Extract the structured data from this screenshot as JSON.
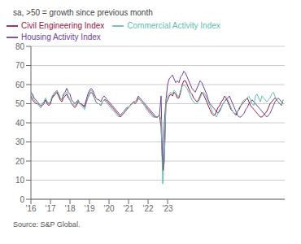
{
  "chart_data": {
    "type": "line",
    "subtitle": "sa, >50 = growth since previous month",
    "annotations": [
      "Source: S&P Global."
    ],
    "x": [
      2016,
      2016.0833,
      2016.1667,
      2016.25,
      2016.3333,
      2016.4167,
      2016.5,
      2016.5833,
      2016.6667,
      2016.75,
      2016.8333,
      2016.9167,
      2017,
      2017.0833,
      2017.1667,
      2017.25,
      2017.3333,
      2017.4167,
      2017.5,
      2017.5833,
      2017.6667,
      2017.75,
      2017.8333,
      2017.9167,
      2018,
      2018.0833,
      2018.1667,
      2018.25,
      2018.3333,
      2018.4167,
      2018.5,
      2018.5833,
      2018.6667,
      2018.75,
      2018.8333,
      2018.9167,
      2019,
      2019.0833,
      2019.1667,
      2019.25,
      2019.3333,
      2019.4167,
      2019.5,
      2019.5833,
      2019.6667,
      2019.75,
      2019.8333,
      2019.9167,
      2020,
      2020.0833,
      2020.1667,
      2020.25,
      2020.3333,
      2020.4167,
      2020.5,
      2020.5833,
      2020.6667,
      2020.75,
      2020.8333,
      2020.9167,
      2021,
      2021.0833,
      2021.1667,
      2021.25,
      2021.3333,
      2021.4167,
      2021.5,
      2021.5833,
      2021.6667,
      2021.75,
      2021.8333,
      2021.9167,
      2022,
      2022.0833,
      2022.1667,
      2022.25,
      2022.3333,
      2022.4167,
      2022.5,
      2022.5833,
      2022.6667,
      2022.75,
      2022.8333,
      2022.9167,
      2023,
      2023.0833,
      2023.1667,
      2023.25,
      2023.3333,
      2023.4167,
      2023.5,
      2023.5833,
      2023.6667,
      2023.75,
      2023.8333,
      2023.9167,
      2024,
      2024.0833,
      2024.1667,
      2024.25,
      2024.3333,
      2024.4167,
      2024.5,
      2024.5833,
      2024.6667,
      2024.75,
      2024.8333,
      2024.9167,
      2025,
      2025.0833,
      2025.1667,
      2025.25,
      2025.3333,
      2025.4167,
      2025.5,
      2025.5833,
      2025.6667,
      2025.75,
      2025.8333,
      2025.9167,
      2026,
      2026.0833,
      2026.1667,
      2026.25,
      2026.3333,
      2026.4167,
      2026.5,
      2026.5833,
      2026.6667,
      2026.75,
      2026.8333,
      2026.9167,
      2027,
      2027.0833,
      2027.1667,
      2027.25,
      2027.3333,
      2027.4167,
      2027.5,
      2027.5833,
      2027.6667,
      2027.75,
      2027.8333,
      2027.9167,
      2028,
      2028.0833,
      2028.1667,
      2028.25,
      2028.3333,
      2028.4167,
      2028.5,
      2028.5833,
      2028.6667,
      2028.75,
      2028.8333,
      2028.9167
    ],
    "series": [
      {
        "name": "Housing Activity Index",
        "color": "#6B3FA0",
        "values": [
          56,
          55,
          53,
          52,
          51,
          50,
          49,
          49,
          50,
          52,
          51,
          50,
          51,
          53,
          55,
          56,
          57,
          55,
          53,
          52,
          55,
          56,
          58,
          56,
          55,
          52,
          51,
          50,
          51,
          52,
          50,
          50,
          49,
          49,
          52,
          55,
          57,
          58,
          57,
          55,
          53,
          52,
          52,
          51,
          53,
          54,
          53,
          52,
          51,
          50,
          49,
          48,
          47,
          46,
          45,
          44,
          45,
          46,
          47,
          48,
          48,
          49,
          50,
          51,
          51,
          52,
          54,
          53,
          52,
          51,
          50,
          49,
          48,
          47,
          46,
          45,
          44,
          43,
          43,
          44,
          54,
          15,
          40,
          52,
          60,
          63,
          64,
          65,
          63,
          61,
          62,
          61,
          64,
          65,
          67,
          66,
          64,
          62,
          60,
          58,
          57,
          56,
          58,
          60,
          62,
          61,
          59,
          57,
          55,
          52,
          50,
          49,
          48,
          47,
          46,
          45,
          46,
          48,
          50,
          51,
          52,
          53,
          54,
          52,
          50,
          48,
          46,
          44,
          43,
          43,
          44,
          45,
          47,
          48,
          50,
          51,
          52,
          51,
          50,
          49,
          48,
          47,
          46,
          45,
          44,
          43,
          44,
          45,
          47,
          49,
          51,
          52,
          53,
          52,
          51,
          50
        ]
      },
      {
        "name": "Civil Engineering Index",
        "color": "#A0143C",
        "values": [
          54,
          52,
          51,
          50,
          50,
          49,
          48,
          50,
          51,
          52,
          50,
          49,
          50,
          53,
          54,
          55,
          56,
          54,
          52,
          51,
          53,
          54,
          55,
          53,
          52,
          50,
          49,
          48,
          49,
          51,
          50,
          50,
          49,
          48,
          51,
          53,
          55,
          56,
          55,
          53,
          51,
          50,
          50,
          49,
          51,
          52,
          52,
          51,
          50,
          49,
          48,
          47,
          46,
          45,
          44,
          43,
          44,
          45,
          46,
          47,
          48,
          49,
          50,
          51,
          50,
          51,
          53,
          52,
          51,
          50,
          49,
          48,
          47,
          46,
          45,
          44,
          43,
          43,
          43,
          44,
          38,
          15,
          20,
          50,
          52,
          54,
          55,
          54,
          56,
          55,
          53,
          53,
          56,
          60,
          62,
          62,
          60,
          58,
          56,
          55,
          53,
          52,
          51,
          52,
          54,
          56,
          55,
          53,
          51,
          49,
          47,
          45,
          44,
          44,
          46,
          48,
          49,
          51,
          52,
          54,
          53,
          51,
          49,
          47,
          46,
          45,
          44,
          46,
          47,
          49,
          50,
          51,
          52,
          53,
          51,
          49,
          48,
          47,
          46,
          45,
          44,
          43,
          43,
          44,
          45,
          46,
          48,
          50,
          51,
          52,
          53,
          52,
          51,
          50,
          49,
          52
        ]
      },
      {
        "name": "Commercial Activity Index",
        "color": "#5CBFAD",
        "values": [
          56,
          54,
          52,
          51,
          50,
          49,
          48,
          50,
          51,
          53,
          51,
          50,
          51,
          54,
          55,
          56,
          57,
          55,
          53,
          52,
          54,
          55,
          56,
          54,
          52,
          50,
          50,
          49,
          50,
          52,
          50,
          49,
          48,
          47,
          50,
          53,
          56,
          57,
          56,
          53,
          51,
          50,
          50,
          49,
          51,
          52,
          51,
          50,
          49,
          48,
          47,
          46,
          45,
          44,
          43,
          44,
          45,
          46,
          47,
          48,
          48,
          49,
          50,
          51,
          51,
          52,
          53,
          52,
          51,
          50,
          49,
          47,
          46,
          45,
          44,
          43,
          43,
          43,
          43,
          44,
          42,
          8,
          20,
          52,
          54,
          55,
          56,
          55,
          57,
          56,
          54,
          54,
          57,
          59,
          60,
          59,
          58,
          56,
          54,
          52,
          51,
          50,
          50,
          51,
          53,
          55,
          56,
          55,
          53,
          51,
          49,
          47,
          45,
          44,
          43,
          45,
          47,
          48,
          50,
          51,
          53,
          52,
          50,
          48,
          46,
          45,
          45,
          46,
          48,
          49,
          51,
          52,
          52,
          53,
          54,
          52,
          50,
          49,
          54,
          55,
          53,
          51,
          54,
          53,
          52,
          51,
          52,
          53,
          55,
          56,
          54,
          52,
          51,
          50,
          49,
          52
        ]
      }
    ],
    "xlim": [
      2016,
      2029
    ],
    "xticks": [
      {
        "value": 2016,
        "label": "'16"
      },
      {
        "value": 2017,
        "label": "'17"
      },
      {
        "value": 2018,
        "label": "'18"
      },
      {
        "value": 2019,
        "label": "'19"
      },
      {
        "value": 2020,
        "label": "'20"
      },
      {
        "value": 2021,
        "label": "'21"
      },
      {
        "value": 2022,
        "label": "'22"
      },
      {
        "value": 2023,
        "label": "'23"
      }
    ],
    "ylim": [
      0,
      80
    ],
    "yticks": [
      0,
      10,
      20,
      30,
      40,
      50,
      60,
      70,
      80
    ],
    "grid": true,
    "legend": "top"
  }
}
